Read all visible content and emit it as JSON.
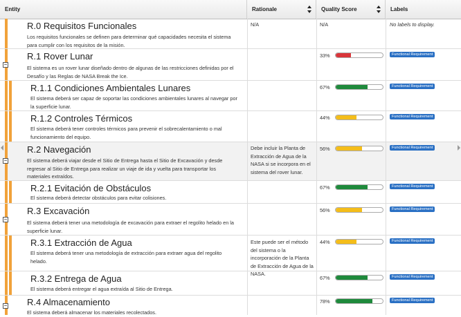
{
  "header": {
    "entity": "Entity",
    "rationale": "Rationale",
    "quality": "Quality Score",
    "labels": "Labels"
  },
  "colors": {
    "orange": "#f1a23a",
    "red": "#d9353a",
    "green": "#1f8a3c",
    "yellow": "#f4bd1a",
    "badge": "#2a70c4"
  },
  "rows": [
    {
      "title": "R.0 Requisitos Funcionales",
      "desc": "Los requisitos funcionales se definen para determinar qué capacidades necesita el sistema para cumplir con los requisitos de la misión.",
      "rationale": "N/A",
      "score_text": "N/A",
      "score": null,
      "label": "No labels to display."
    },
    {
      "title": "R.1 Rover Lunar",
      "desc": "El sistema es un rover lunar diseñado dentro de algunas de las restricciones definidas por el Desafío y las Reglas de NASA Break the Ice.",
      "rationale": "",
      "score_text": "33%",
      "score": 33,
      "color": "red",
      "label": "Functional Requirement"
    },
    {
      "title": "R.1.1 Condiciones Ambientales Lunares",
      "desc": "El sistema deberá ser capaz de soportar las condiciones ambientales lunares al navegar por la superficie lunar.",
      "rationale": "",
      "score_text": "67%",
      "score": 67,
      "color": "green",
      "label": "Functional Requirement"
    },
    {
      "title": "R.1.2 Controles Térmicos",
      "desc": "El sistema deberá tener controles térmicos para prevenir el sobrecalentamiento o mal funcionamiento del equipo.",
      "rationale": "",
      "score_text": "44%",
      "score": 44,
      "color": "yellow",
      "label": "Functional Requirement"
    },
    {
      "title": "R.2 Navegación",
      "desc": "El sistema deberá viajar desde el Sitio de Entrega hasta el Sitio de Excavación y desde regresar al Sitio de Entrega para realizar un viaje de ida y vuelta para transportar los materiales extraídos.",
      "rationale": "Debe incluir la Planta de Extracción de Agua de la NASA si se incorpora en el sistema del rover lunar.",
      "score_text": "56%",
      "score": 56,
      "color": "yellow",
      "label": "Functional Requirement"
    },
    {
      "title": "R.2.1 Evitación de Obstáculos",
      "desc": "El sistema deberá detectar obstáculos para evitar colisiones.",
      "rationale": "",
      "score_text": "67%",
      "score": 67,
      "color": "green",
      "label": "Functional Requirement"
    },
    {
      "title": "R.3 Excavación",
      "desc": "El sistema deberá tener una metodología de excavación para extraer el regolito helado en la superficie lunar.",
      "rationale": "",
      "score_text": "56%",
      "score": 56,
      "color": "yellow",
      "label": "Functional Requirement"
    },
    {
      "title": "R.3.1 Extracción de Agua",
      "desc": "El sistema deberá tener una metodología de extracción para extraer agua del regolito helado.",
      "rationale": "Este puede ser el método del sistema o la incorporación de la Planta de Extracción de Agua de la NASA.",
      "score_text": "44%",
      "score": 44,
      "color": "yellow",
      "label": "Functional Requirement"
    },
    {
      "title": "R.3.2 Entrega de Agua",
      "desc": "El sistema deberá entregar el agua extraída al Sitio de Entrega.",
      "rationale": "",
      "score_text": "67%",
      "score": 67,
      "color": "green",
      "label": "Functional Requirement"
    },
    {
      "title": "R.4 Almacenamiento",
      "desc": "El sistema deberá almacenar los materiales recolectados.",
      "rationale": "",
      "score_text": "78%",
      "score": 78,
      "color": "green",
      "label": "Functional Requirement"
    }
  ]
}
